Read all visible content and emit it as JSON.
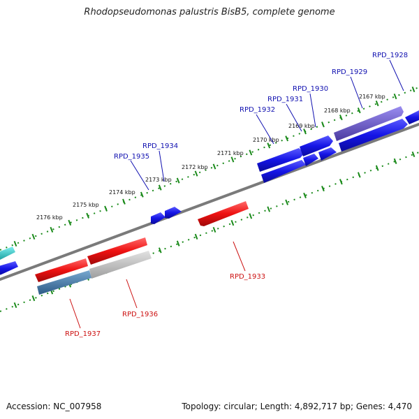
{
  "title": "Rhodopseudomonas palustris BisB5, complete genome",
  "footer": {
    "accession": "Accession: NC_007958",
    "stats": "Topology: circular; Length: 4,892,717 bp; Genes: 4,470"
  },
  "colors": {
    "backbone": "#7a7a7a",
    "tick": "#1a8a1a",
    "forward_gene": "#1515e6",
    "reverse_gene": "#ee1111",
    "forward_label": "#1010b0",
    "reverse_label": "#cc1010",
    "cyan_feature": "#22cccc",
    "steel_feature": "#4a7fb0",
    "gray_feature": "#bdbdbd",
    "purple_feature": "#6a58c8"
  },
  "scale_labels": [
    "2167 kbp",
    "2168 kbp",
    "2169 kbp",
    "2170 kbp",
    "2171 kbp",
    "2172 kbp",
    "2173 kbp",
    "2174 kbp",
    "2175 kbp",
    "2176 kbp"
  ],
  "forward_genes": [
    "RPD_1928",
    "RPD_1929",
    "RPD_1930",
    "RPD_1931",
    "RPD_1932",
    "RPD_1934",
    "RPD_1935"
  ],
  "reverse_genes": [
    "RPD_1933",
    "RPD_1936",
    "RPD_1937"
  ]
}
